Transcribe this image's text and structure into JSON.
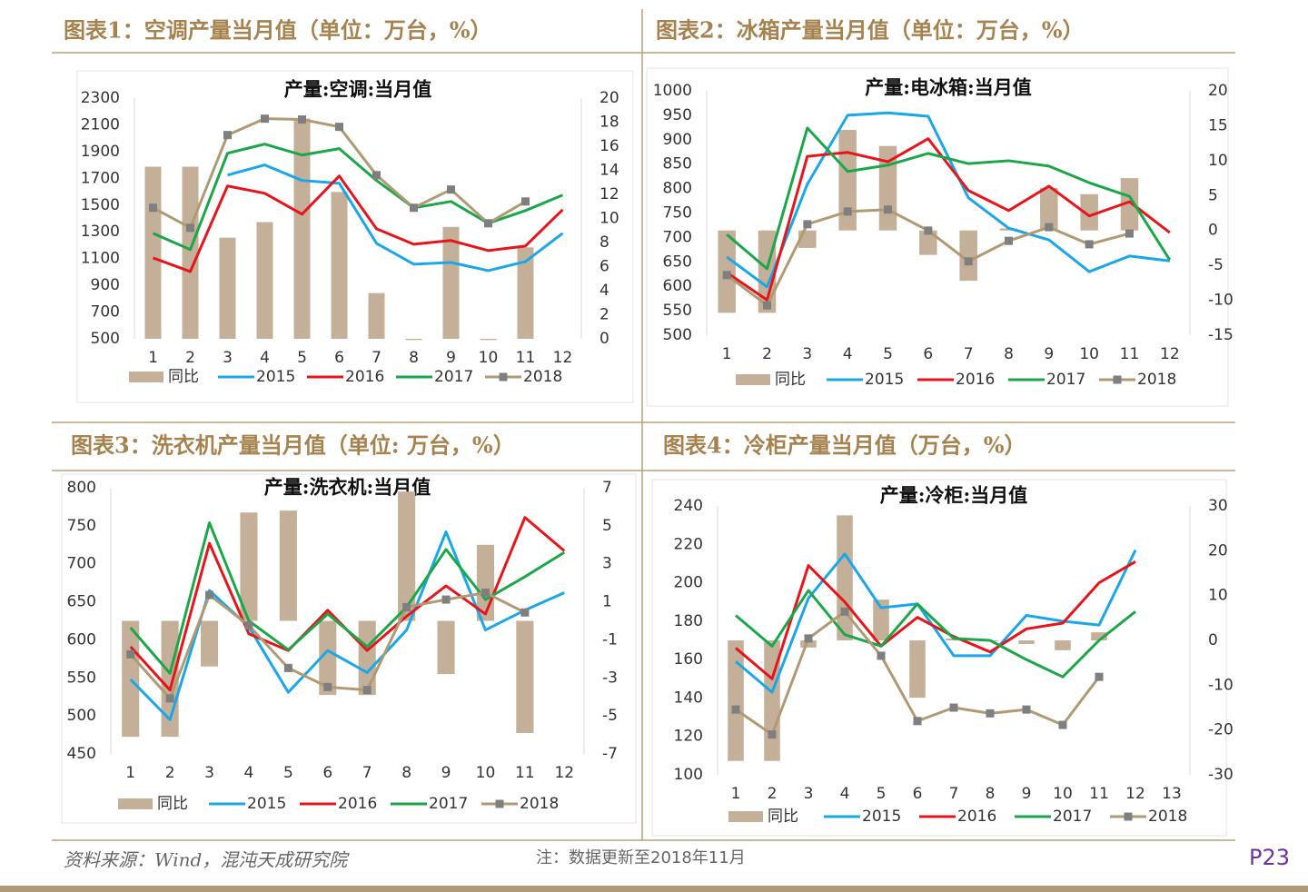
{
  "chart_data": [
    {
      "type": "bar-line",
      "title": "图表1：空调产量当月值（单位：万台，%）",
      "subtitle": "产量:空调:当月值",
      "categories": [
        "1",
        "2",
        "3",
        "4",
        "5",
        "6",
        "7",
        "8",
        "9",
        "10",
        "11",
        "12"
      ],
      "ylim": [
        500,
        2300
      ],
      "yticks": [
        500,
        700,
        900,
        1100,
        1300,
        1500,
        1700,
        1900,
        2100,
        2300
      ],
      "y2lim": [
        0,
        20
      ],
      "y2ticks": [
        0,
        2,
        4,
        6,
        8,
        10,
        12,
        14,
        16,
        18,
        20
      ],
      "series": [
        {
          "name": "同比",
          "type": "bar",
          "axis": "y2",
          "color": "#c4b098",
          "values": [
            14.3,
            14.3,
            8.4,
            9.7,
            18.3,
            12.2,
            3.8,
            -0.1,
            9.3,
            -0.1,
            7.6,
            null
          ]
        },
        {
          "name": "2015",
          "type": "line",
          "color": "#1aa7e8",
          "values": [
            null,
            null,
            1724,
            1800,
            1684,
            1663,
            1214,
            1058,
            1071,
            1010,
            1078,
            1289
          ]
        },
        {
          "name": "2016",
          "type": "line",
          "color": "#e8141c",
          "values": [
            1105,
            1003,
            1643,
            1588,
            1432,
            1718,
            1323,
            1207,
            1235,
            1160,
            1194,
            1466
          ]
        },
        {
          "name": "2017",
          "type": "line",
          "color": "#1ca64a",
          "values": [
            1289,
            1167,
            1888,
            1956,
            1874,
            1922,
            1684,
            1480,
            1527,
            1364,
            1459,
            1575
          ]
        },
        {
          "name": "2018",
          "type": "line",
          "color": "#b09a74",
          "marker": "square",
          "marker_color": "#7f7f7f",
          "values": [
            1480,
            1330,
            2024,
            2146,
            2140,
            2085,
            1724,
            1480,
            1616,
            1364,
            1527,
            null
          ]
        }
      ]
    },
    {
      "type": "bar-line",
      "title": "图表2：冰箱产量当月值（单位：万台，%）",
      "subtitle": "产量:电冰箱:当月值",
      "categories": [
        "1",
        "2",
        "3",
        "4",
        "5",
        "6",
        "7",
        "8",
        "9",
        "10",
        "11",
        "12"
      ],
      "ylim": [
        500,
        1000
      ],
      "yticks": [
        500,
        550,
        600,
        650,
        700,
        750,
        800,
        850,
        900,
        950,
        1000
      ],
      "y2lim": [
        -15,
        20
      ],
      "y2ticks": [
        -15,
        -10,
        -5,
        0,
        5,
        10,
        15,
        20
      ],
      "series": [
        {
          "name": "同比",
          "type": "bar",
          "axis": "y2",
          "color": "#c4b098",
          "values": [
            -11.8,
            -11.8,
            -2.5,
            14.4,
            12.1,
            -3.5,
            -7.2,
            0.3,
            6.1,
            5.2,
            7.5,
            null
          ]
        },
        {
          "name": "2015",
          "type": "line",
          "color": "#1aa7e8",
          "values": [
            660,
            599,
            809,
            950,
            955,
            948,
            781,
            719,
            695,
            630,
            662,
            652
          ]
        },
        {
          "name": "2016",
          "type": "line",
          "color": "#e8141c",
          "values": [
            628,
            572,
            866,
            874,
            855,
            902,
            796,
            755,
            805,
            744,
            773,
            710
          ]
        },
        {
          "name": "2017",
          "type": "line",
          "color": "#1ca64a",
          "values": [
            706,
            636,
            924,
            835,
            848,
            872,
            851,
            857,
            846,
            812,
            784,
            654
          ]
        },
        {
          "name": "2018",
          "type": "line",
          "color": "#b09a74",
          "marker": "square",
          "marker_color": "#7f7f7f",
          "values": [
            623,
            561,
            727,
            753,
            757,
            714,
            651,
            693,
            721,
            686,
            708,
            null
          ]
        }
      ]
    },
    {
      "type": "bar-line",
      "title": "图表3：洗衣机产量当月值（单位: 万台，%）",
      "subtitle": "产量:洗衣机:当月值",
      "categories": [
        "1",
        "2",
        "3",
        "4",
        "5",
        "6",
        "7",
        "8",
        "9",
        "10",
        "11",
        "12"
      ],
      "ylim": [
        450,
        800
      ],
      "yticks": [
        450,
        500,
        550,
        600,
        650,
        700,
        750,
        800
      ],
      "y2lim": [
        -7,
        7
      ],
      "y2ticks": [
        -7,
        -5,
        -3,
        -1,
        1,
        3,
        5,
        7
      ],
      "series": [
        {
          "name": "同比",
          "type": "bar",
          "axis": "y2",
          "color": "#c4b098",
          "values": [
            -6.1,
            -6.1,
            -2.4,
            5.7,
            5.8,
            -3.9,
            -3.9,
            6.8,
            -2.8,
            4.0,
            -5.9,
            null
          ]
        },
        {
          "name": "2015",
          "type": "line",
          "color": "#1aa7e8",
          "values": [
            548,
            495,
            665,
            617,
            531,
            586,
            557,
            613,
            742,
            613,
            639,
            662
          ]
        },
        {
          "name": "2016",
          "type": "line",
          "color": "#e8141c",
          "values": [
            591,
            534,
            727,
            608,
            586,
            639,
            586,
            631,
            671,
            634,
            761,
            717
          ]
        },
        {
          "name": "2017",
          "type": "line",
          "color": "#1ca64a",
          "values": [
            616,
            556,
            754,
            625,
            587,
            634,
            591,
            643,
            719,
            653,
            683,
            715
          ]
        },
        {
          "name": "2018",
          "type": "line",
          "color": "#b09a74",
          "marker": "square",
          "marker_color": "#7f7f7f",
          "values": [
            581,
            523,
            659,
            619,
            563,
            538,
            534,
            643,
            653,
            662,
            636,
            null
          ]
        }
      ]
    },
    {
      "type": "bar-line",
      "title": "图表4：冷柜产量当月值（万台，%）",
      "subtitle": "产量:冷柜:当月值",
      "categories": [
        "1",
        "2",
        "3",
        "4",
        "5",
        "6",
        "7",
        "8",
        "9",
        "10",
        "11",
        "12",
        "13"
      ],
      "ylim": [
        100,
        240
      ],
      "yticks": [
        100,
        120,
        140,
        160,
        180,
        200,
        220,
        240
      ],
      "y2lim": [
        -30,
        30
      ],
      "y2ticks": [
        -30,
        -20,
        -10,
        0,
        10,
        20,
        30
      ],
      "series": [
        {
          "name": "同比",
          "type": "bar",
          "axis": "y2",
          "color": "#c4b098",
          "values": [
            -26.9,
            -26.9,
            -1.6,
            27.9,
            9.1,
            -12.8,
            0.4,
            -0.2,
            -0.8,
            -2.2,
            1.8,
            null,
            null
          ]
        },
        {
          "name": "2015",
          "type": "line",
          "color": "#1aa7e8",
          "values": [
            159,
            143,
            192,
            215,
            187,
            189,
            162,
            162,
            183,
            180,
            178,
            217,
            null
          ]
        },
        {
          "name": "2016",
          "type": "line",
          "color": "#e8141c",
          "values": [
            166,
            150,
            209,
            190,
            167,
            182,
            172,
            164,
            176,
            179,
            200,
            211,
            null
          ]
        },
        {
          "name": "2017",
          "type": "line",
          "color": "#1ca64a",
          "values": [
            183,
            167,
            196,
            173,
            167,
            189,
            171,
            170,
            160,
            151,
            170,
            185,
            null
          ]
        },
        {
          "name": "2018",
          "type": "line",
          "color": "#b09a74",
          "marker": "square",
          "marker_color": "#7f7f7f",
          "values": [
            134,
            121,
            171,
            185,
            162,
            128,
            135,
            132,
            134,
            126,
            151,
            null,
            null
          ]
        }
      ]
    }
  ],
  "footer": {
    "source": "资料来源：Wind，混沌天成研究院",
    "note": "注：数据更新至2018年11月",
    "page": "P23"
  }
}
